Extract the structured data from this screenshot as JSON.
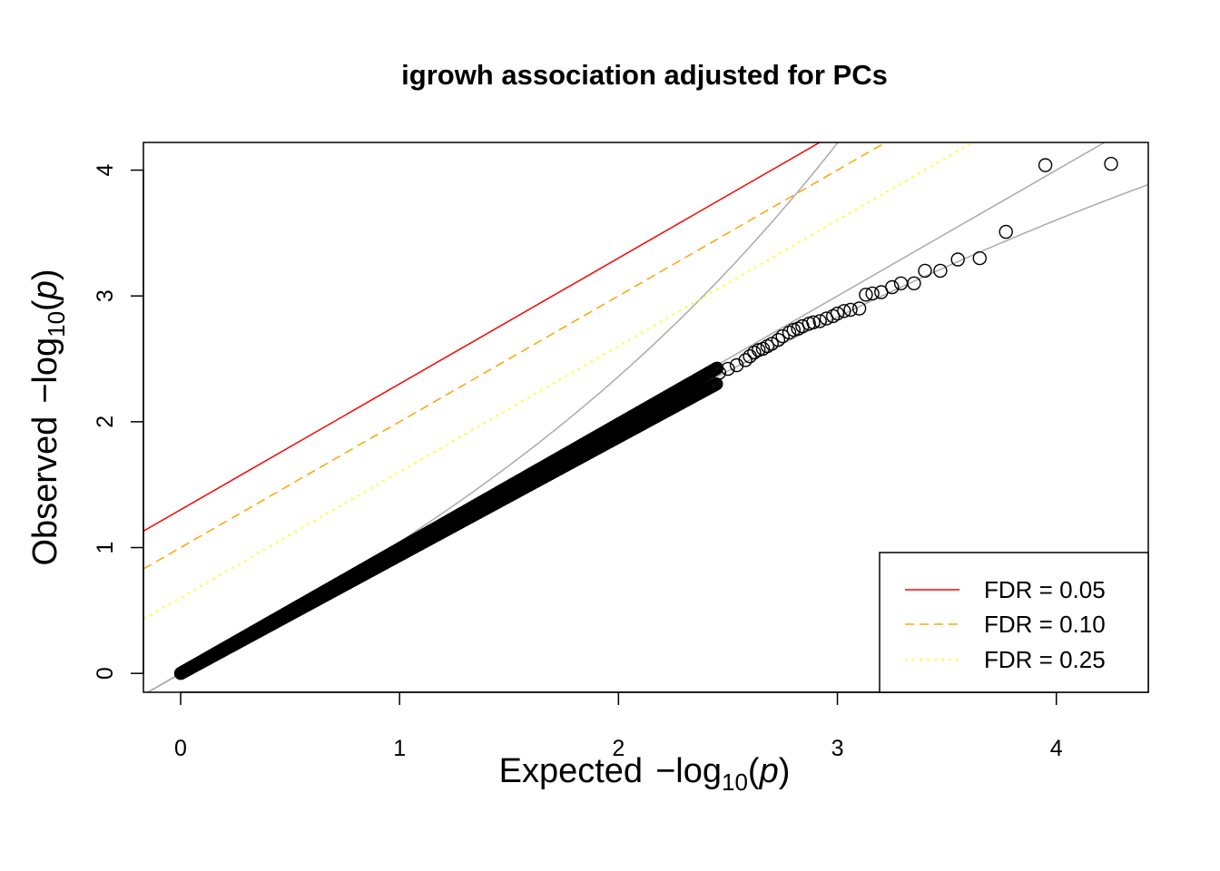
{
  "chart_data": {
    "type": "scatter",
    "title": "igrowh association adjusted for PCs",
    "xlabel": {
      "prefix": "Expected",
      "minus": "−",
      "func": "log",
      "sub": "10",
      "var": "p"
    },
    "ylabel": {
      "prefix": "Observed",
      "minus": "−",
      "func": "log",
      "sub": "10",
      "var": "p"
    },
    "xlim": [
      -0.17,
      4.42
    ],
    "ylim": [
      -0.15,
      4.22
    ],
    "xticks": [
      0,
      1,
      2,
      3,
      4
    ],
    "yticks": [
      0,
      1,
      2,
      3,
      4
    ],
    "grid": false,
    "legend": {
      "position": "bottom-right",
      "entries": [
        {
          "label": "FDR = 0.05",
          "color": "#ff0000",
          "style": "solid"
        },
        {
          "label": "FDR = 0.10",
          "color": "#ffa500",
          "style": "dashed"
        },
        {
          "label": "FDR = 0.25",
          "color": "#ffff00",
          "style": "dotted"
        }
      ]
    },
    "fdr_lines": [
      {
        "label": "FDR = 0.05",
        "intercept": 1.301,
        "slope": 1
      },
      {
        "label": "FDR = 0.10",
        "intercept": 1.0,
        "slope": 1
      },
      {
        "label": "FDR = 0.25",
        "intercept": 0.602,
        "slope": 1
      }
    ],
    "colors": {
      "points": "#000000",
      "reference": "#aaaaaa"
    },
    "scatter_bulk": {
      "x_start": 0,
      "x_end": 2.45,
      "slope_low": 0.94,
      "slope_high": 0.99
    },
    "tail_points": [
      [
        2.46,
        2.39
      ],
      [
        2.5,
        2.42
      ],
      [
        2.54,
        2.45
      ],
      [
        2.58,
        2.49
      ],
      [
        2.6,
        2.52
      ],
      [
        2.62,
        2.55
      ],
      [
        2.64,
        2.57
      ],
      [
        2.66,
        2.58
      ],
      [
        2.68,
        2.6
      ],
      [
        2.7,
        2.62
      ],
      [
        2.73,
        2.65
      ],
      [
        2.75,
        2.68
      ],
      [
        2.78,
        2.71
      ],
      [
        2.8,
        2.73
      ],
      [
        2.82,
        2.74
      ],
      [
        2.84,
        2.76
      ],
      [
        2.87,
        2.78
      ],
      [
        2.89,
        2.79
      ],
      [
        2.92,
        2.8
      ],
      [
        2.95,
        2.82
      ],
      [
        2.98,
        2.84
      ],
      [
        3.0,
        2.86
      ],
      [
        3.03,
        2.88
      ],
      [
        3.06,
        2.89
      ],
      [
        3.1,
        2.9
      ],
      [
        3.13,
        3.01
      ],
      [
        3.16,
        3.02
      ],
      [
        3.2,
        3.03
      ],
      [
        3.25,
        3.07
      ],
      [
        3.29,
        3.1
      ],
      [
        3.35,
        3.1
      ],
      [
        3.4,
        3.2
      ],
      [
        3.47,
        3.2
      ],
      [
        3.55,
        3.29
      ],
      [
        3.65,
        3.3
      ],
      [
        3.77,
        3.51
      ],
      [
        3.95,
        4.04
      ],
      [
        4.25,
        4.05
      ]
    ]
  }
}
